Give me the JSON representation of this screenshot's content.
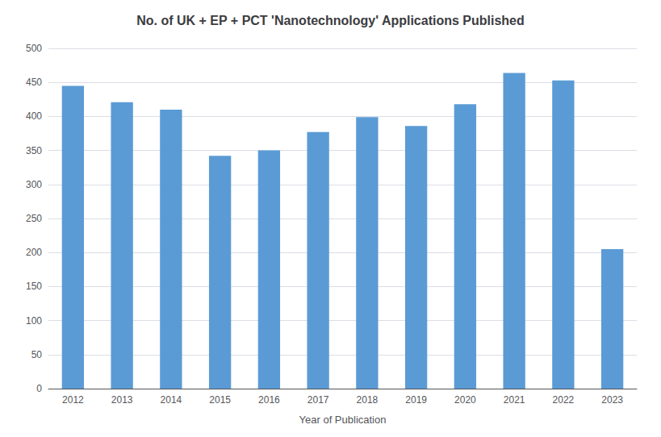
{
  "chart_data": {
    "type": "bar",
    "title": "No. of UK + EP + PCT 'Nanotechnology' Applications Published",
    "xlabel": "Year of Publication",
    "categories": [
      "2012",
      "2013",
      "2014",
      "2015",
      "2016",
      "2017",
      "2018",
      "2019",
      "2020",
      "2021",
      "2022",
      "2023"
    ],
    "values": [
      445,
      421,
      410,
      342,
      350,
      377,
      399,
      386,
      418,
      464,
      453,
      205
    ],
    "color": "#5B9BD5",
    "ylim": [
      0,
      500
    ],
    "yticks": [
      0,
      50,
      100,
      150,
      200,
      250,
      300,
      350,
      400,
      450,
      500
    ],
    "grid": true
  }
}
